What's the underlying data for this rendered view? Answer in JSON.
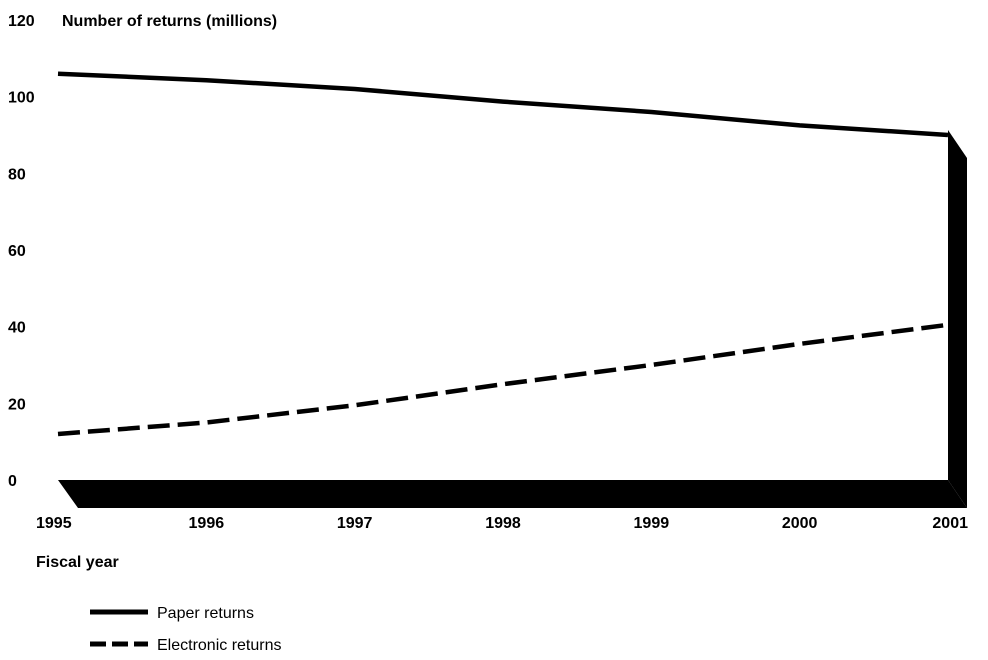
{
  "chart_data": {
    "type": "line",
    "title": "Number of returns (millions)",
    "xlabel": "Fiscal year",
    "ylabel": "",
    "ylim": [
      0,
      120
    ],
    "yticks": [
      0,
      20,
      40,
      60,
      80,
      100,
      120
    ],
    "x": [
      "1995",
      "1996",
      "1997",
      "1998",
      "1999",
      "2000",
      "2001"
    ],
    "series": [
      {
        "name": "Paper returns",
        "style": "solid",
        "color": "#000000",
        "values": [
          106,
          104.3,
          102,
          98.7,
          96,
          92.5,
          90
        ]
      },
      {
        "name": "Electronic returns",
        "style": "dashed",
        "color": "#000000",
        "values": [
          12,
          15,
          19.5,
          25,
          30,
          35.5,
          40.5
        ]
      }
    ],
    "grid": false,
    "legend_position": "bottom-left"
  }
}
